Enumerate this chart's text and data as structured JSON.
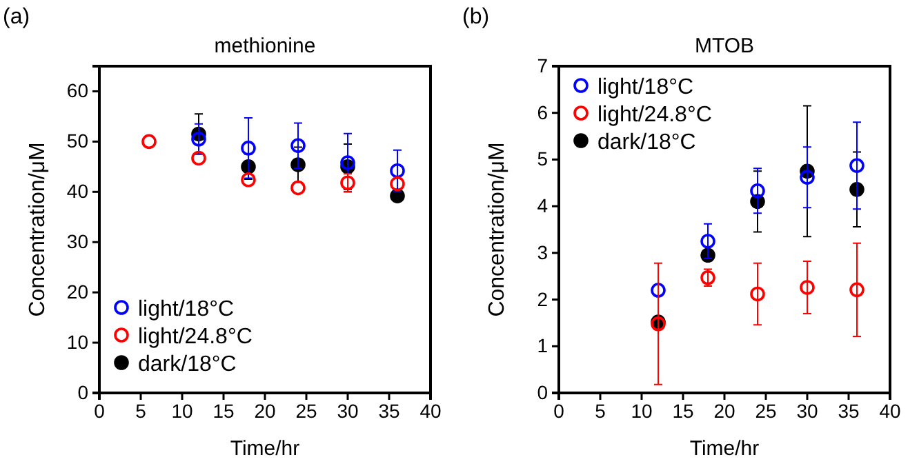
{
  "chart_data": [
    {
      "type": "scatter",
      "title": "methionine",
      "xlabel": "Time/hr",
      "ylabel": "Concentration/μM",
      "annotations": [
        "(a)"
      ],
      "xlim": [
        0,
        40
      ],
      "xticks": [
        0,
        5,
        10,
        15,
        20,
        25,
        30,
        35,
        40
      ],
      "ylim": [
        0,
        65
      ],
      "yticks": [
        0,
        10,
        20,
        30,
        40,
        50,
        60
      ],
      "legend": "bottom left",
      "marker": "circle",
      "grid": false,
      "series": [
        {
          "name": "light/18°C",
          "color": "#0000ff",
          "x": [
            12,
            18,
            24,
            30,
            36
          ],
          "values": [
            50.5,
            48.7,
            49.2,
            45.8,
            44.2
          ],
          "errors": [
            3,
            6,
            4.5,
            5.8,
            4.1
          ]
        },
        {
          "name": "light/24.8°C",
          "color": "#ff0000",
          "x": [
            6,
            12,
            18,
            24,
            30,
            36
          ],
          "values": [
            50,
            46.7,
            42.4,
            40.8,
            41.8,
            41.6
          ],
          "errors": [
            null,
            null,
            null,
            null,
            1.8,
            null
          ]
        },
        {
          "name": "dark/18°C",
          "color": "#000000",
          "x": [
            12,
            18,
            24,
            30,
            36
          ],
          "values": [
            51.5,
            45,
            45.4,
            45,
            39.2
          ],
          "errors": [
            4,
            2.5,
            3.5,
            4.5,
            null
          ]
        }
      ]
    },
    {
      "type": "scatter",
      "title": "MTOB",
      "xlabel": "Time/hr",
      "ylabel": "Concentration/μM",
      "annotations": [
        "(b)"
      ],
      "xlim": [
        0,
        40
      ],
      "xticks": [
        0,
        5,
        10,
        15,
        20,
        25,
        30,
        35,
        40
      ],
      "ylim": [
        0,
        7
      ],
      "yticks": [
        0,
        1,
        2,
        3,
        4,
        5,
        6,
        7
      ],
      "legend": "top left",
      "marker": "circle",
      "grid": false,
      "series": [
        {
          "name": "light/18°C",
          "color": "#0000ff",
          "x": [
            12,
            18,
            24,
            30,
            36
          ],
          "values": [
            2.2,
            3.25,
            4.33,
            4.62,
            4.87
          ],
          "errors": [
            null,
            0.37,
            0.48,
            0.65,
            0.93
          ]
        },
        {
          "name": "light/24.8°C",
          "color": "#ff0000",
          "x": [
            12,
            18,
            24,
            30,
            36
          ],
          "values": [
            1.48,
            2.47,
            2.12,
            2.26,
            2.21
          ],
          "errors": [
            1.3,
            0.18,
            0.66,
            0.56,
            1.0
          ]
        },
        {
          "name": "dark/18°C",
          "color": "#000000",
          "x": [
            12,
            18,
            24,
            30,
            36
          ],
          "values": [
            1.52,
            2.95,
            4.1,
            4.75,
            4.36
          ],
          "errors": [
            null,
            null,
            0.65,
            1.4,
            0.8
          ]
        }
      ]
    }
  ]
}
